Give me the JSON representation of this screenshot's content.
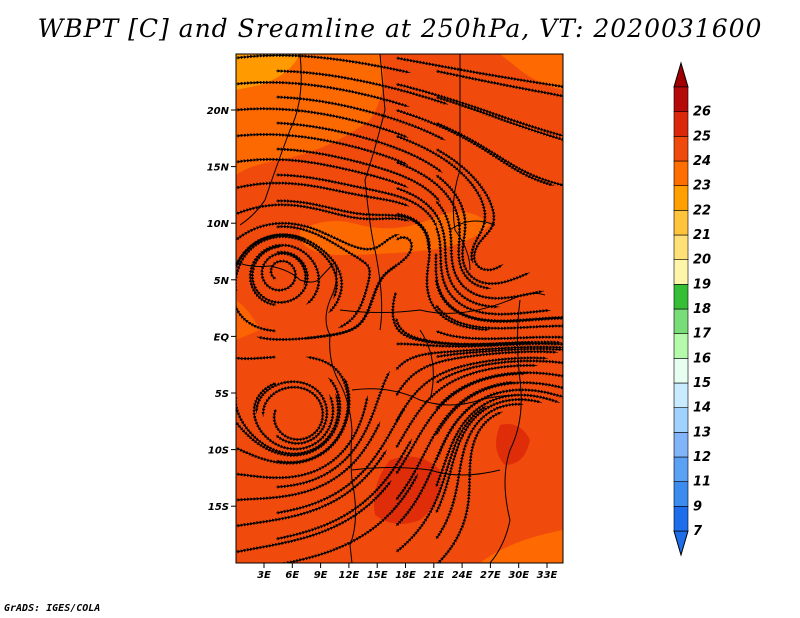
{
  "title": "WBPT [C] and Sreamline at 250hPa, VT: 2020031600",
  "footer": "GrADS: IGES/COLA",
  "map": {
    "lat_ticks": [
      "20N",
      "15N",
      "10N",
      "5N",
      "EQ",
      "5S",
      "10S",
      "15S"
    ],
    "lon_ticks": [
      "3E",
      "6E",
      "9E",
      "12E",
      "15E",
      "18E",
      "21E",
      "24E",
      "27E",
      "30E",
      "33E"
    ],
    "base_color": "#f04b0c"
  },
  "colorbar": {
    "labels": [
      "7",
      "9",
      "11",
      "12",
      "13",
      "14",
      "15",
      "16",
      "17",
      "18",
      "19",
      "20",
      "21",
      "22",
      "23",
      "24",
      "25",
      "26"
    ],
    "colors": [
      "#1e6eeb",
      "#3c8cf0",
      "#5aa0f5",
      "#82b4fa",
      "#a0d2ff",
      "#c8ebff",
      "#e6fff0",
      "#b4faaa",
      "#78dc78",
      "#37be37",
      "#fff5aa",
      "#ffe178",
      "#ffc33c",
      "#ffa000",
      "#ff6e00",
      "#f04b0c",
      "#dc280a",
      "#b40a0a"
    ],
    "under_color": "#1e6eeb",
    "over_color": "#a00000"
  }
}
